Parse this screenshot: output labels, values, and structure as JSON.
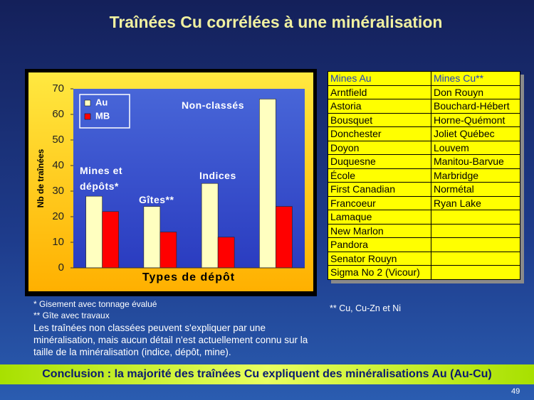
{
  "header": {
    "title": "Traînées Cu corrélées à une minéralisation"
  },
  "chart_data": {
    "type": "bar",
    "categories": [
      "Mines et dépôts*",
      "Gîtes**",
      "Indices",
      "Non-classés"
    ],
    "series": [
      {
        "name": "Au",
        "color": "#ffffc0",
        "values": [
          28,
          24,
          33,
          66
        ]
      },
      {
        "name": "MB",
        "color": "#ff0000",
        "values": [
          22,
          14,
          12,
          24
        ]
      }
    ],
    "ylim": [
      0,
      70
    ],
    "yticks": [
      0,
      10,
      20,
      30,
      40,
      50,
      60,
      70
    ],
    "y_label": "Nb de traînées",
    "x_label": "Types de dépôt",
    "grid": false,
    "legend": "upper left"
  },
  "footnotes": [
    "*  Gisement avec tonnage évalué",
    "** Gîte avec travaux"
  ],
  "paragraph": "Les traînées non classées peuvent s'expliquer par une minéralisation, mais aucun détail n'est actuellement connu sur la taille de la minéralisation (indice, dépôt, mine).",
  "table": {
    "header": [
      "Mines Au",
      "Mines Cu**"
    ],
    "rows": [
      [
        "Arntfield",
        "Don Rouyn"
      ],
      [
        "Astoria",
        "Bouchard-Hébert"
      ],
      [
        "Bousquet",
        "Horne-Quémont"
      ],
      [
        "Donchester",
        "Joliet Québec"
      ],
      [
        "Doyon",
        "Louvem"
      ],
      [
        "Duquesne",
        "Manitou-Barvue"
      ],
      [
        "École",
        "Marbridge"
      ],
      [
        "First Canadian",
        "Normétal"
      ],
      [
        "Francoeur",
        "Ryan Lake"
      ],
      [
        "Lamaque"
      ],
      [
        "New Marlon"
      ],
      [
        "Pandora"
      ],
      [
        "Senator Rouyn"
      ],
      [
        "Sigma No 2 (Vicour)"
      ]
    ],
    "note": "** Cu, Cu-Zn et Ni"
  },
  "conclusion": "Conclusion : la majorité des traînées Cu expliquent des minéralisations Au (Au-Cu)",
  "page_number": "49"
}
